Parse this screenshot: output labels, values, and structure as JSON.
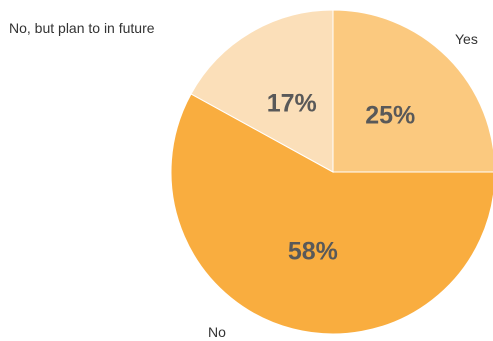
{
  "chart_data": {
    "type": "pie",
    "categories": [
      "Yes",
      "No",
      "No, but plan to in future"
    ],
    "values": [
      25,
      58,
      17
    ],
    "value_labels": [
      "25%",
      "58%",
      "17%"
    ],
    "colors": [
      "#fbc97f",
      "#f9ad3f",
      "#fbdfb9"
    ],
    "start_angle": "12 o'clock",
    "direction": "clockwise",
    "legend": "none",
    "title": ""
  }
}
